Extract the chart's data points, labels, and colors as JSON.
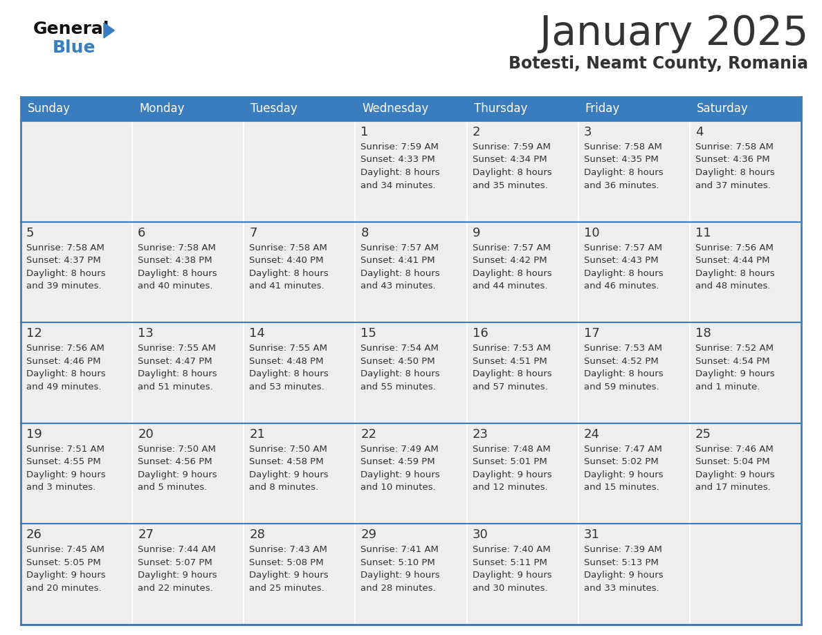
{
  "title": "January 2025",
  "subtitle": "Botesti, Neamt County, Romania",
  "days_of_week": [
    "Sunday",
    "Monday",
    "Tuesday",
    "Wednesday",
    "Thursday",
    "Friday",
    "Saturday"
  ],
  "header_bg": "#3a7dbf",
  "header_text": "#ffffff",
  "cell_bg": "#eeeeee",
  "text_color": "#333333",
  "line_color": "#3a7dbf",
  "days": [
    {
      "day": 1,
      "col": 3,
      "row": 0,
      "sunrise": "7:59 AM",
      "sunset": "4:33 PM",
      "daylight_h": "8 hours",
      "daylight_m": "and 34 minutes."
    },
    {
      "day": 2,
      "col": 4,
      "row": 0,
      "sunrise": "7:59 AM",
      "sunset": "4:34 PM",
      "daylight_h": "8 hours",
      "daylight_m": "and 35 minutes."
    },
    {
      "day": 3,
      "col": 5,
      "row": 0,
      "sunrise": "7:58 AM",
      "sunset": "4:35 PM",
      "daylight_h": "8 hours",
      "daylight_m": "and 36 minutes."
    },
    {
      "day": 4,
      "col": 6,
      "row": 0,
      "sunrise": "7:58 AM",
      "sunset": "4:36 PM",
      "daylight_h": "8 hours",
      "daylight_m": "and 37 minutes."
    },
    {
      "day": 5,
      "col": 0,
      "row": 1,
      "sunrise": "7:58 AM",
      "sunset": "4:37 PM",
      "daylight_h": "8 hours",
      "daylight_m": "and 39 minutes."
    },
    {
      "day": 6,
      "col": 1,
      "row": 1,
      "sunrise": "7:58 AM",
      "sunset": "4:38 PM",
      "daylight_h": "8 hours",
      "daylight_m": "and 40 minutes."
    },
    {
      "day": 7,
      "col": 2,
      "row": 1,
      "sunrise": "7:58 AM",
      "sunset": "4:40 PM",
      "daylight_h": "8 hours",
      "daylight_m": "and 41 minutes."
    },
    {
      "day": 8,
      "col": 3,
      "row": 1,
      "sunrise": "7:57 AM",
      "sunset": "4:41 PM",
      "daylight_h": "8 hours",
      "daylight_m": "and 43 minutes."
    },
    {
      "day": 9,
      "col": 4,
      "row": 1,
      "sunrise": "7:57 AM",
      "sunset": "4:42 PM",
      "daylight_h": "8 hours",
      "daylight_m": "and 44 minutes."
    },
    {
      "day": 10,
      "col": 5,
      "row": 1,
      "sunrise": "7:57 AM",
      "sunset": "4:43 PM",
      "daylight_h": "8 hours",
      "daylight_m": "and 46 minutes."
    },
    {
      "day": 11,
      "col": 6,
      "row": 1,
      "sunrise": "7:56 AM",
      "sunset": "4:44 PM",
      "daylight_h": "8 hours",
      "daylight_m": "and 48 minutes."
    },
    {
      "day": 12,
      "col": 0,
      "row": 2,
      "sunrise": "7:56 AM",
      "sunset": "4:46 PM",
      "daylight_h": "8 hours",
      "daylight_m": "and 49 minutes."
    },
    {
      "day": 13,
      "col": 1,
      "row": 2,
      "sunrise": "7:55 AM",
      "sunset": "4:47 PM",
      "daylight_h": "8 hours",
      "daylight_m": "and 51 minutes."
    },
    {
      "day": 14,
      "col": 2,
      "row": 2,
      "sunrise": "7:55 AM",
      "sunset": "4:48 PM",
      "daylight_h": "8 hours",
      "daylight_m": "and 53 minutes."
    },
    {
      "day": 15,
      "col": 3,
      "row": 2,
      "sunrise": "7:54 AM",
      "sunset": "4:50 PM",
      "daylight_h": "8 hours",
      "daylight_m": "and 55 minutes."
    },
    {
      "day": 16,
      "col": 4,
      "row": 2,
      "sunrise": "7:53 AM",
      "sunset": "4:51 PM",
      "daylight_h": "8 hours",
      "daylight_m": "and 57 minutes."
    },
    {
      "day": 17,
      "col": 5,
      "row": 2,
      "sunrise": "7:53 AM",
      "sunset": "4:52 PM",
      "daylight_h": "8 hours",
      "daylight_m": "and 59 minutes."
    },
    {
      "day": 18,
      "col": 6,
      "row": 2,
      "sunrise": "7:52 AM",
      "sunset": "4:54 PM",
      "daylight_h": "9 hours",
      "daylight_m": "and 1 minute."
    },
    {
      "day": 19,
      "col": 0,
      "row": 3,
      "sunrise": "7:51 AM",
      "sunset": "4:55 PM",
      "daylight_h": "9 hours",
      "daylight_m": "and 3 minutes."
    },
    {
      "day": 20,
      "col": 1,
      "row": 3,
      "sunrise": "7:50 AM",
      "sunset": "4:56 PM",
      "daylight_h": "9 hours",
      "daylight_m": "and 5 minutes."
    },
    {
      "day": 21,
      "col": 2,
      "row": 3,
      "sunrise": "7:50 AM",
      "sunset": "4:58 PM",
      "daylight_h": "9 hours",
      "daylight_m": "and 8 minutes."
    },
    {
      "day": 22,
      "col": 3,
      "row": 3,
      "sunrise": "7:49 AM",
      "sunset": "4:59 PM",
      "daylight_h": "9 hours",
      "daylight_m": "and 10 minutes."
    },
    {
      "day": 23,
      "col": 4,
      "row": 3,
      "sunrise": "7:48 AM",
      "sunset": "5:01 PM",
      "daylight_h": "9 hours",
      "daylight_m": "and 12 minutes."
    },
    {
      "day": 24,
      "col": 5,
      "row": 3,
      "sunrise": "7:47 AM",
      "sunset": "5:02 PM",
      "daylight_h": "9 hours",
      "daylight_m": "and 15 minutes."
    },
    {
      "day": 25,
      "col": 6,
      "row": 3,
      "sunrise": "7:46 AM",
      "sunset": "5:04 PM",
      "daylight_h": "9 hours",
      "daylight_m": "and 17 minutes."
    },
    {
      "day": 26,
      "col": 0,
      "row": 4,
      "sunrise": "7:45 AM",
      "sunset": "5:05 PM",
      "daylight_h": "9 hours",
      "daylight_m": "and 20 minutes."
    },
    {
      "day": 27,
      "col": 1,
      "row": 4,
      "sunrise": "7:44 AM",
      "sunset": "5:07 PM",
      "daylight_h": "9 hours",
      "daylight_m": "and 22 minutes."
    },
    {
      "day": 28,
      "col": 2,
      "row": 4,
      "sunrise": "7:43 AM",
      "sunset": "5:08 PM",
      "daylight_h": "9 hours",
      "daylight_m": "and 25 minutes."
    },
    {
      "day": 29,
      "col": 3,
      "row": 4,
      "sunrise": "7:41 AM",
      "sunset": "5:10 PM",
      "daylight_h": "9 hours",
      "daylight_m": "and 28 minutes."
    },
    {
      "day": 30,
      "col": 4,
      "row": 4,
      "sunrise": "7:40 AM",
      "sunset": "5:11 PM",
      "daylight_h": "9 hours",
      "daylight_m": "and 30 minutes."
    },
    {
      "day": 31,
      "col": 5,
      "row": 4,
      "sunrise": "7:39 AM",
      "sunset": "5:13 PM",
      "daylight_h": "9 hours",
      "daylight_m": "and 33 minutes."
    }
  ],
  "num_rows": 5,
  "num_cols": 7,
  "logo_general_color": "#111111",
  "logo_blue_color": "#3a7dbf",
  "logo_triangle_color": "#3a7dbf"
}
